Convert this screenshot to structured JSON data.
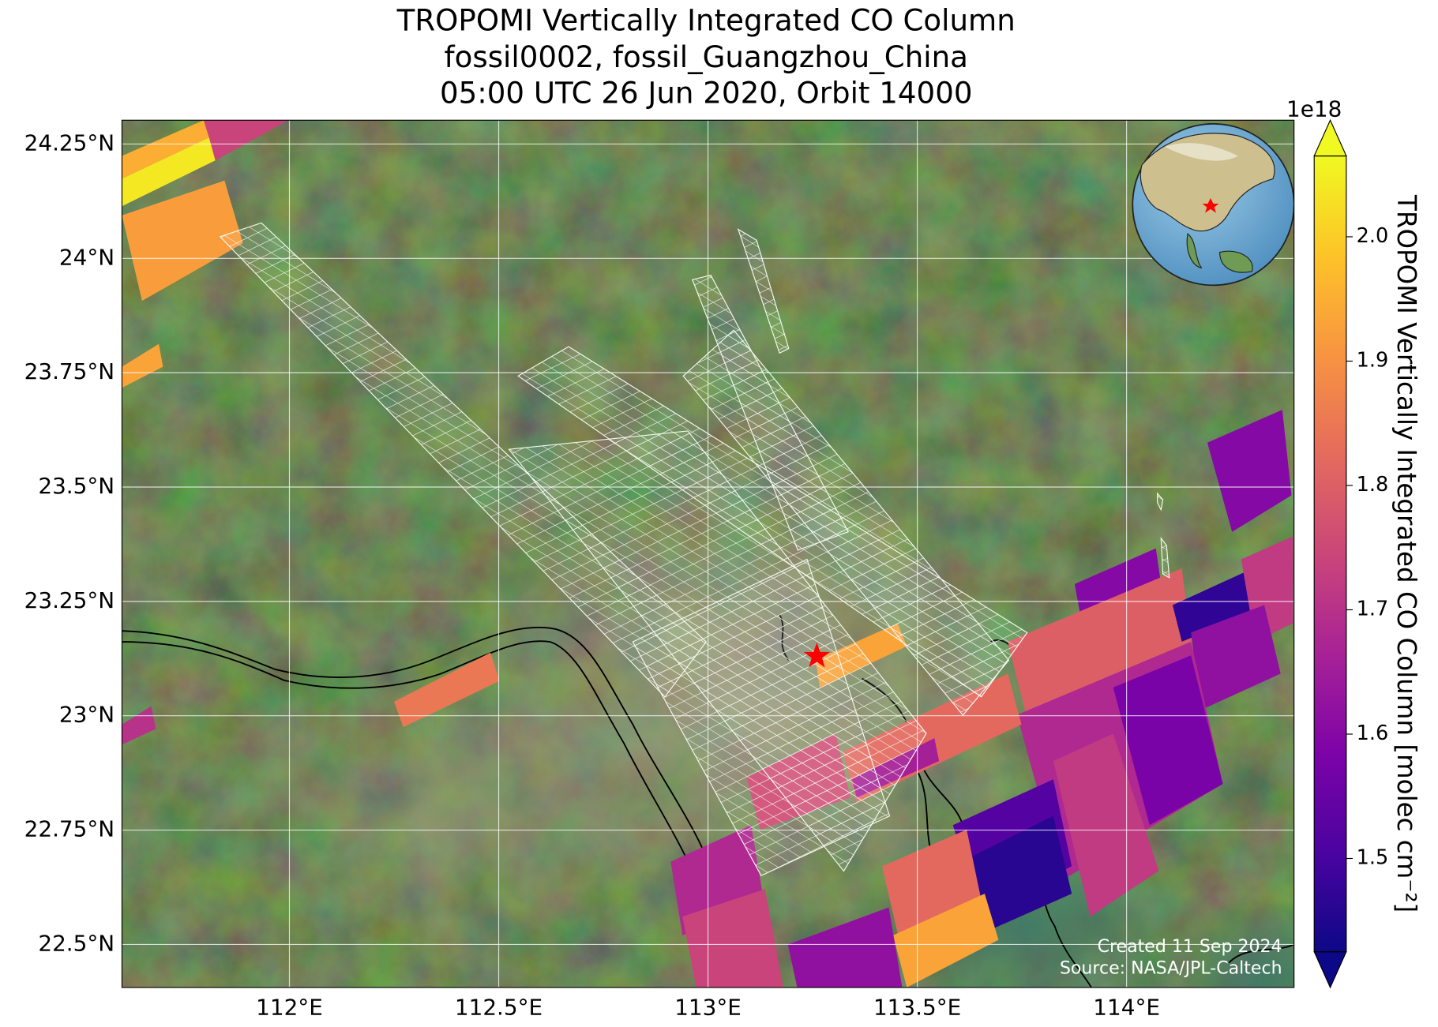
{
  "chart_data": {
    "type": "map",
    "title": [
      "TROPOMI Vertically Integrated CO Column",
      "fossil0002, fossil_Guangzhou_China",
      "05:00 UTC 26 Jun 2020, Orbit 14000"
    ],
    "xlim": [
      111.6,
      114.4
    ],
    "ylim": [
      22.406,
      24.302
    ],
    "xticks": [
      {
        "value": 112,
        "label": "112°E"
      },
      {
        "value": 112.5,
        "label": "112.5°E"
      },
      {
        "value": 113,
        "label": "113°E"
      },
      {
        "value": 113.5,
        "label": "113.5°E"
      },
      {
        "value": 114,
        "label": "114°E"
      }
    ],
    "yticks": [
      {
        "value": 22.5,
        "label": "22.5°N"
      },
      {
        "value": 22.75,
        "label": "22.75°N"
      },
      {
        "value": 23,
        "label": "23°N"
      },
      {
        "value": 23.25,
        "label": "23.25°N"
      },
      {
        "value": 23.5,
        "label": "23.5°N"
      },
      {
        "value": 23.75,
        "label": "23.75°N"
      },
      {
        "value": 24,
        "label": "24°N"
      },
      {
        "value": 24.25,
        "label": "24.25°N"
      }
    ],
    "grid": true,
    "colormap": "plasma",
    "vlim": [
      1.425,
      2.065
    ],
    "cbar_ticks": [
      1.5,
      1.6,
      1.7,
      1.8,
      1.9,
      {
        "value": 2,
        "label": "2.0"
      }
    ],
    "cbar_offset": "1e18",
    "cbar_label": "TROPOMI Vertically Integrated CO Column [molec cm⁻²]",
    "extend": "both",
    "site": {
      "lon": 113.26,
      "lat": 23.13,
      "color": "#ff0000"
    },
    "annotations": [
      "Created 11 Sep 2024",
      "Source: NASA/JPL-Caltech"
    ],
    "pixels": [
      {
        "value": 1.74,
        "lon": [
          111.795,
          111.998,
          111.823
        ],
        "lat": [
          24.302,
          24.302,
          24.214
        ]
      },
      {
        "value": 1.95,
        "lon": [
          111.6,
          111.795,
          111.808,
          111.6
        ],
        "lat": [
          24.224,
          24.302,
          24.264,
          24.174
        ]
      },
      {
        "value": 2.04,
        "lon": [
          111.6,
          111.808,
          111.823,
          111.6
        ],
        "lat": [
          24.174,
          24.264,
          24.214,
          24.114
        ]
      },
      {
        "value": 1.92,
        "lon": [
          111.6,
          111.845,
          111.889,
          111.648
        ],
        "lat": [
          24.094,
          24.17,
          24.033,
          23.907
        ]
      },
      {
        "value": 1.93,
        "lon": [
          111.6,
          111.688,
          111.698,
          111.6
        ],
        "lat": [
          23.763,
          23.813,
          23.763,
          23.717
        ]
      },
      {
        "value": 1.85,
        "lon": [
          112.25,
          112.48,
          112.502,
          112.272
        ],
        "lat": [
          23.031,
          23.138,
          23.076,
          22.975
        ]
      },
      {
        "value": 1.7,
        "lon": [
          111.6,
          111.67,
          111.681,
          111.6
        ],
        "lat": [
          22.981,
          23.021,
          22.971,
          22.937
        ]
      },
      {
        "value": 1.93,
        "lon": [
          113.257,
          113.453,
          113.475,
          113.267
        ],
        "lat": [
          23.122,
          23.202,
          23.152,
          23.062
        ]
      },
      {
        "value": 1.6,
        "lon": [
          114.193,
          114.372,
          114.394,
          114.252
        ],
        "lat": [
          23.597,
          23.669,
          23.482,
          23.402
        ]
      },
      {
        "value": 1.6,
        "lon": [
          113.876,
          114.07,
          114.099,
          113.913
        ],
        "lat": [
          23.288,
          23.366,
          23.182,
          23.102
        ]
      },
      {
        "value": 1.8,
        "lon": [
          113.716,
          114.132,
          114.154,
          113.76
        ],
        "lat": [
          23.162,
          23.322,
          23.162,
          23.002
        ]
      },
      {
        "value": 1.47,
        "lon": [
          114.11,
          114.397,
          114.397,
          114.132
        ],
        "lat": [
          23.242,
          23.362,
          23.262,
          23.162
        ]
      },
      {
        "value": 1.72,
        "lon": [
          114.274,
          114.397,
          114.397,
          114.307
        ],
        "lat": [
          23.342,
          23.392,
          23.202,
          23.162
        ]
      },
      {
        "value": 1.62,
        "lon": [
          114.154,
          114.329,
          114.368,
          114.176
        ],
        "lat": [
          23.182,
          23.242,
          23.092,
          23.012
        ]
      },
      {
        "value": 1.68,
        "lon": [
          113.738,
          114.154,
          114.23,
          113.847
        ],
        "lat": [
          23.002,
          23.162,
          22.851,
          22.641
        ]
      },
      {
        "value": 1.58,
        "lon": [
          113.968,
          114.154,
          114.23,
          114.055
        ],
        "lat": [
          23.062,
          23.132,
          22.851,
          22.761
        ]
      },
      {
        "value": 1.72,
        "lon": [
          113.825,
          113.968,
          114.077,
          113.913
        ],
        "lat": [
          22.901,
          22.961,
          22.661,
          22.561
        ]
      },
      {
        "value": 1.82,
        "lon": [
          113.322,
          113.716,
          113.749,
          113.355
        ],
        "lat": [
          22.921,
          23.092,
          22.981,
          22.811
        ]
      },
      {
        "value": 1.76,
        "lon": [
          113.092,
          113.305,
          113.34,
          113.125
        ],
        "lat": [
          22.865,
          22.961,
          22.821,
          22.751
        ]
      },
      {
        "value": 1.66,
        "lon": [
          113.344,
          113.541,
          113.552,
          113.355
        ],
        "lat": [
          22.861,
          22.951,
          22.901,
          22.821
        ]
      },
      {
        "value": 1.52,
        "lon": [
          113.585,
          113.825,
          113.869,
          113.65
        ],
        "lat": [
          22.761,
          22.861,
          22.671,
          22.571
        ]
      },
      {
        "value": 1.46,
        "lon": [
          113.628,
          113.825,
          113.869,
          113.672
        ],
        "lat": [
          22.691,
          22.781,
          22.611,
          22.531
        ]
      },
      {
        "value": 1.82,
        "lon": [
          113.416,
          113.618,
          113.661,
          113.464
        ],
        "lat": [
          22.671,
          22.751,
          22.561,
          22.48
        ]
      },
      {
        "value": 1.93,
        "lon": [
          113.442,
          113.661,
          113.694,
          113.475
        ],
        "lat": [
          22.52,
          22.611,
          22.51,
          22.406
        ]
      },
      {
        "value": 1.68,
        "lon": [
          112.911,
          113.103,
          113.136,
          112.939
        ],
        "lat": [
          22.681,
          22.761,
          22.581,
          22.52
        ]
      },
      {
        "value": 1.74,
        "lon": [
          112.939,
          113.136,
          113.18,
          112.972
        ],
        "lat": [
          22.561,
          22.621,
          22.406,
          22.406
        ]
      },
      {
        "value": 1.62,
        "lon": [
          113.191,
          113.432,
          113.464,
          113.213
        ],
        "lat": [
          22.5,
          22.581,
          22.406,
          22.406
        ]
      }
    ]
  }
}
